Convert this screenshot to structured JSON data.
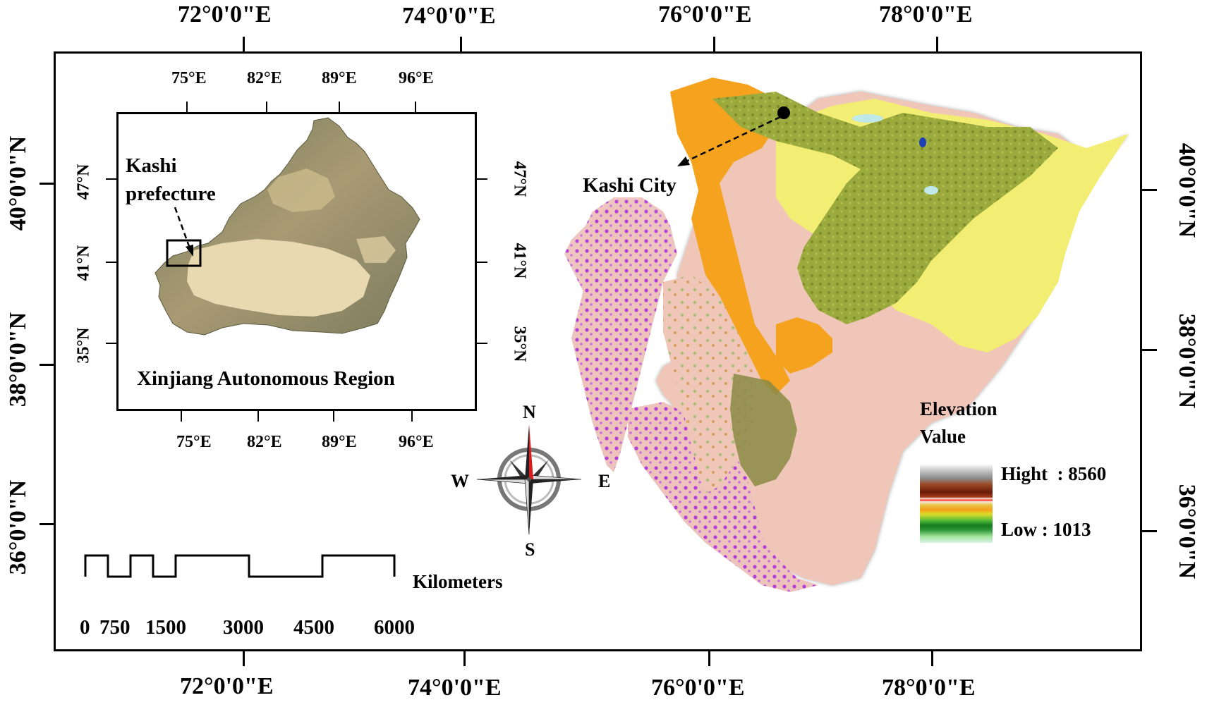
{
  "frame": {
    "top_lon": [
      "72°0'0\"E",
      "74°0'0\"E",
      "76°0'0\"E",
      "78°0'0\"E"
    ],
    "bottom_lon": [
      "72°0'0\"E",
      "74°0'0\"E",
      "76°0'0\"E",
      "78°0'0\"E"
    ],
    "left_lat": [
      "40°0'0\"N",
      "38°0'0\"N",
      "36°0'0\"N"
    ],
    "right_lat": [
      "40°0'0\"N",
      "38°0'0\"N",
      "36°0'0\"N"
    ]
  },
  "inset": {
    "top_lon": [
      "75°E",
      "82°E",
      "89°E",
      "96°E"
    ],
    "bottom_lon": [
      "75°E",
      "82°E",
      "89°E",
      "96°E"
    ],
    "left_lat": [
      "47°N",
      "41°N",
      "35°N"
    ],
    "right_lat": [
      "47°N",
      "41°N",
      "35°N"
    ],
    "label_line1": "Kashi",
    "label_line2": "prefecture",
    "region_label": "Xinjiang Autonomous Region"
  },
  "map": {
    "city_label": "Kashi City"
  },
  "compass": {
    "n": "N",
    "s": "S",
    "e": "E",
    "w": "W"
  },
  "scale": {
    "unit": "Kilometers",
    "ticks": [
      "0",
      "750",
      "1500",
      "3000",
      "4500",
      "6000"
    ]
  },
  "legend": {
    "title_line1": "Elevation",
    "title_line2": "Value",
    "high": "Hight  : 8560",
    "low": "Low : 1013"
  },
  "colors": {
    "desert_yellow": "#f2ee74",
    "orange": "#f5a21e",
    "olive": "#9aa83a",
    "pink": "#f0c4b8",
    "purple": "#b03ad6",
    "compass_red": "#d81b1b"
  }
}
